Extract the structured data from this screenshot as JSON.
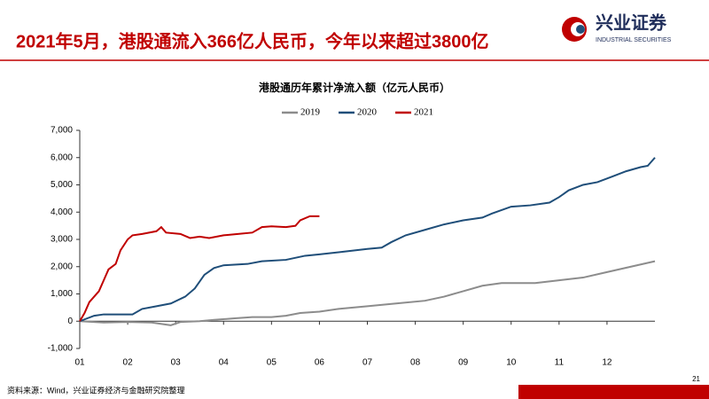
{
  "header": {
    "title": "2021年5月，港股通流入366亿人民币，今年以来超过3800亿",
    "logo_cn": "兴业证券",
    "logo_en": "INDUSTRIAL SECURITIES"
  },
  "footer": {
    "source": "资料来源：Wind，兴业证券经济与金融研究院整理",
    "page": "21"
  },
  "chart_data": {
    "type": "line",
    "title": "港股通历年累计净流入额（亿元人民币）",
    "xlim": [
      1,
      13
    ],
    "xticks": [
      {
        "value": 1,
        "label": "01"
      },
      {
        "value": 2,
        "label": "02"
      },
      {
        "value": 3,
        "label": "03"
      },
      {
        "value": 4,
        "label": "04"
      },
      {
        "value": 5,
        "label": "05"
      },
      {
        "value": 6,
        "label": "06"
      },
      {
        "value": 7,
        "label": "07"
      },
      {
        "value": 8,
        "label": "08"
      },
      {
        "value": 9,
        "label": "09"
      },
      {
        "value": 10,
        "label": "10"
      },
      {
        "value": 11,
        "label": "11"
      },
      {
        "value": 12,
        "label": "12"
      }
    ],
    "ylim": [
      -1000,
      7000
    ],
    "yticks": [
      {
        "value": -1000,
        "label": "-1,000"
      },
      0,
      {
        "value": 1000,
        "label": "1,000"
      },
      {
        "value": 2000,
        "label": "2,000"
      },
      {
        "value": 3000,
        "label": "3,000"
      },
      {
        "value": 4000,
        "label": "4,000"
      },
      {
        "value": 5000,
        "label": "5,000"
      },
      {
        "value": 6000,
        "label": "6,000"
      },
      {
        "value": 7000,
        "label": "7,000"
      }
    ],
    "series": [
      {
        "name": "2019",
        "color": "#8c8c8c",
        "x": [
          1,
          1.5,
          2,
          2.5,
          2.9,
          3.1,
          3.5,
          3.8,
          4.2,
          4.6,
          5,
          5.3,
          5.6,
          6,
          6.4,
          7,
          7.6,
          8.2,
          8.6,
          9,
          9.4,
          9.8,
          10.5,
          11,
          11.5,
          12,
          12.5,
          13
        ],
        "values": [
          0,
          -50,
          -30,
          -50,
          -150,
          -30,
          0,
          50,
          100,
          150,
          150,
          200,
          300,
          350,
          450,
          550,
          650,
          750,
          900,
          1100,
          1300,
          1400,
          1400,
          1500,
          1600,
          1800,
          2000,
          2200
        ]
      },
      {
        "name": "2020",
        "color": "#1f4e79",
        "x": [
          1,
          1.3,
          1.5,
          2.1,
          2.3,
          2.6,
          2.9,
          3.2,
          3.4,
          3.6,
          3.8,
          4,
          4.5,
          4.8,
          5.3,
          5.7,
          6,
          6.5,
          7,
          7.3,
          7.5,
          7.8,
          8.2,
          8.6,
          9,
          9.4,
          9.6,
          10,
          10.4,
          10.8,
          11,
          11.2,
          11.5,
          11.8,
          12.1,
          12.4,
          12.7,
          12.85,
          13
        ],
        "values": [
          0,
          200,
          250,
          250,
          450,
          550,
          650,
          900,
          1200,
          1700,
          1950,
          2050,
          2100,
          2200,
          2250,
          2400,
          2450,
          2550,
          2650,
          2700,
          2900,
          3150,
          3350,
          3550,
          3700,
          3800,
          3950,
          4200,
          4250,
          4350,
          4550,
          4800,
          5000,
          5100,
          5300,
          5500,
          5650,
          5700,
          6000
        ]
      },
      {
        "name": "2021",
        "color": "#c00000",
        "x": [
          1,
          1.1,
          1.2,
          1.4,
          1.5,
          1.6,
          1.75,
          1.85,
          2,
          2.1,
          2.3,
          2.6,
          2.7,
          2.8,
          3.1,
          3.3,
          3.5,
          3.7,
          4,
          4.3,
          4.6,
          4.8,
          5,
          5.3,
          5.5,
          5.6,
          5.8,
          6
        ],
        "values": [
          0,
          300,
          700,
          1100,
          1500,
          1900,
          2100,
          2600,
          3000,
          3150,
          3200,
          3300,
          3450,
          3250,
          3200,
          3050,
          3100,
          3050,
          3150,
          3200,
          3250,
          3450,
          3480,
          3450,
          3500,
          3700,
          3850,
          3850
        ]
      }
    ]
  }
}
